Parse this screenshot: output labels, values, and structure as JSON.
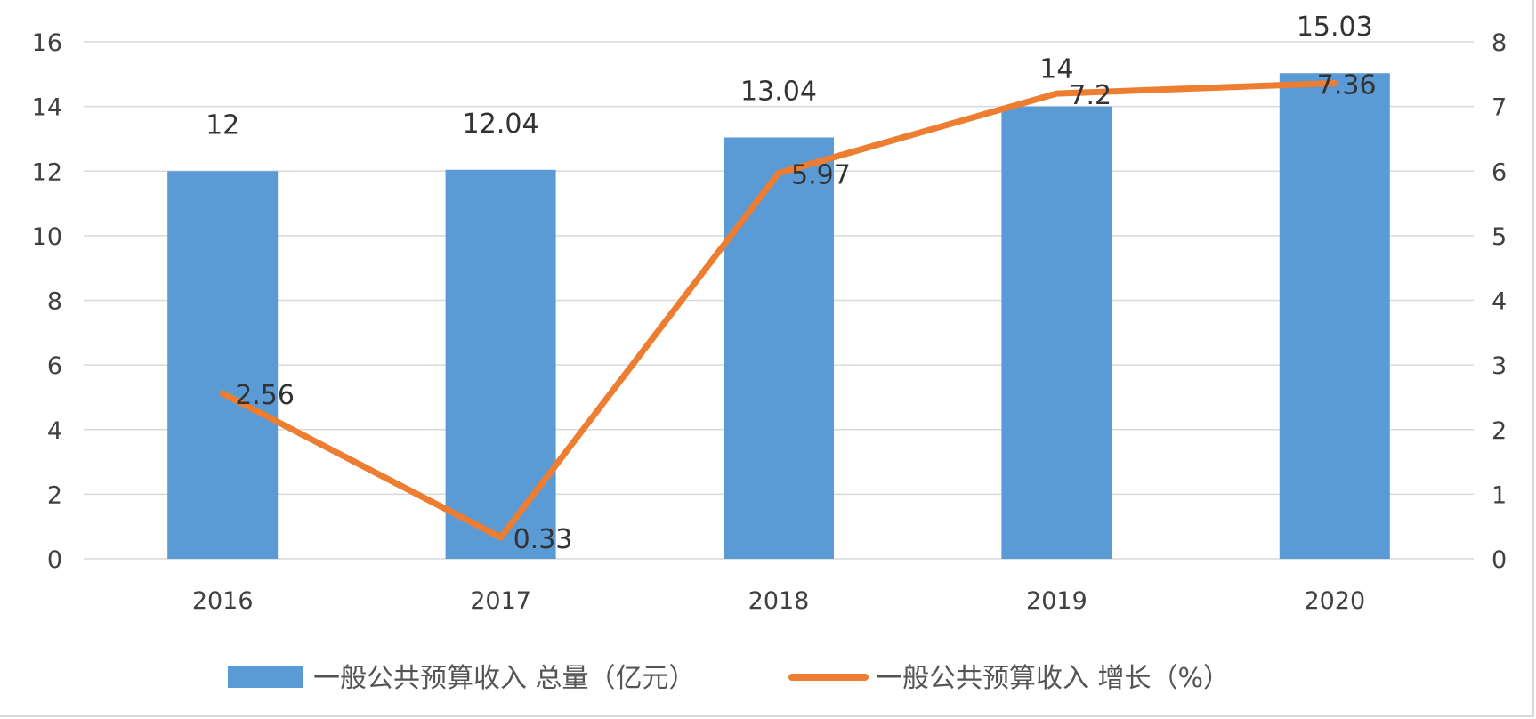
{
  "chart_data": {
    "type": "bar",
    "categories": [
      "2016",
      "2017",
      "2018",
      "2019",
      "2020"
    ],
    "series": [
      {
        "name": "一般公共预算收入 总量（亿元）",
        "type": "bar",
        "axis": "left",
        "color": "#5b9bd5",
        "values": [
          12,
          12.04,
          13.04,
          14,
          15.03
        ],
        "labels": [
          "12",
          "12.04",
          "13.04",
          "14",
          "15.03"
        ]
      },
      {
        "name": "一般公共预算收入 增长（%）",
        "type": "line",
        "axis": "right",
        "color": "#ed7d31",
        "values": [
          2.56,
          0.33,
          5.97,
          7.2,
          7.36
        ],
        "labels": [
          "2.56",
          "0.33",
          "5.97",
          "7.2",
          "7.36"
        ]
      }
    ],
    "y_left": {
      "ylim": [
        0,
        16
      ],
      "ticks": [
        "0",
        "2",
        "4",
        "6",
        "8",
        "10",
        "12",
        "14",
        "16"
      ]
    },
    "y_right": {
      "ylim": [
        0,
        8
      ],
      "ticks": [
        "0",
        "1",
        "2",
        "3",
        "4",
        "5",
        "6",
        "7",
        "8"
      ]
    },
    "grid": true,
    "legend": "bottom"
  }
}
